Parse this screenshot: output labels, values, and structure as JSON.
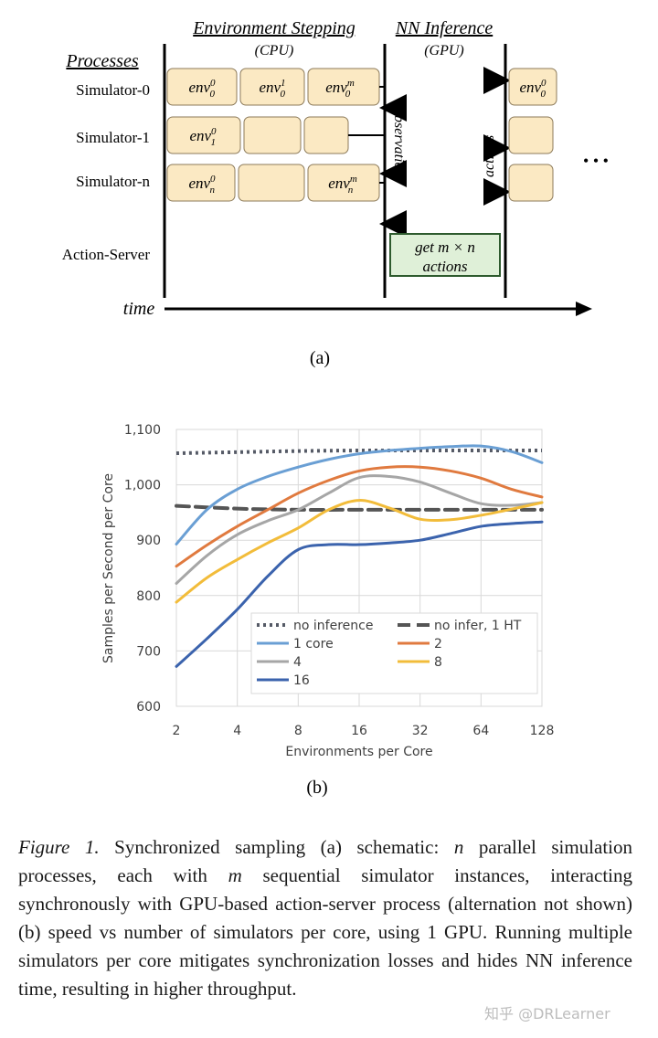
{
  "schematic": {
    "header_env": "Environment Stepping",
    "header_env_sub": "(CPU)",
    "header_nn": "NN Inference",
    "header_nn_sub": "(GPU)",
    "processes_label": "Processes",
    "rows": [
      "Simulator-0",
      "Simulator-1",
      "Simulator-n",
      "Action-Server"
    ],
    "observations_label": "observations",
    "actions_label": "actions",
    "action_box_line1": "get m × n",
    "action_box_line2": "actions",
    "time_label": "time",
    "ellipsis": "• • •",
    "panel_label": "(a)"
  },
  "chart_data": {
    "type": "line",
    "ylabel": "Samples per Second per Core",
    "xlabel": "Environments per Core",
    "categories": [
      "2",
      "4",
      "8",
      "16",
      "32",
      "64",
      "128"
    ],
    "x": [
      1,
      2,
      3,
      4,
      5,
      6,
      7
    ],
    "ylim": [
      600,
      1100
    ],
    "yticks": [
      "600",
      "700",
      "800",
      "900",
      "1,000",
      "1,100"
    ],
    "ytick_values": [
      600,
      700,
      800,
      900,
      1000,
      1100
    ],
    "grid": true,
    "legend_position": "bottom-center, inside",
    "series": [
      {
        "name": "no inference",
        "color": "#555a66",
        "dash": "dot",
        "x": [
          1,
          2,
          3,
          4,
          5,
          6,
          7
        ],
        "values": [
          1057,
          1059,
          1061,
          1062,
          1062,
          1062,
          1062
        ]
      },
      {
        "name": "no infer, 1 HT",
        "color": "#555555",
        "dash": "dash",
        "x": [
          1,
          2,
          3,
          4,
          5,
          6,
          7
        ],
        "values": [
          962,
          957,
          955,
          955,
          955,
          955,
          955
        ]
      },
      {
        "name": "1 core",
        "color": "#6a9fd4",
        "dash": "solid",
        "x": [
          1,
          1.5,
          2,
          2.5,
          3,
          3.5,
          4,
          4.5,
          5,
          5.5,
          6,
          6.5,
          7
        ],
        "values": [
          893,
          955,
          992,
          1015,
          1032,
          1046,
          1056,
          1062,
          1066,
          1069,
          1070,
          1060,
          1040
        ]
      },
      {
        "name": "2",
        "color": "#e07a3f",
        "dash": "solid",
        "x": [
          1,
          1.5,
          2,
          2.5,
          3,
          3.5,
          4,
          4.5,
          5,
          5.5,
          6,
          6.5,
          7
        ],
        "values": [
          853,
          891,
          925,
          955,
          985,
          1008,
          1025,
          1032,
          1032,
          1025,
          1012,
          992,
          978
        ]
      },
      {
        "name": "4",
        "color": "#a6a6a6",
        "dash": "solid",
        "x": [
          1,
          1.5,
          2,
          2.5,
          3,
          3.5,
          4,
          4.5,
          5,
          5.5,
          6,
          6.5,
          7
        ],
        "values": [
          822,
          872,
          910,
          935,
          955,
          985,
          1013,
          1015,
          1005,
          985,
          966,
          963,
          968
        ]
      },
      {
        "name": "8",
        "color": "#f2bc3a",
        "dash": "solid",
        "x": [
          1,
          1.5,
          2,
          2.5,
          3,
          3.5,
          4,
          4.5,
          5,
          5.5,
          6,
          6.5,
          7
        ],
        "values": [
          788,
          832,
          865,
          895,
          922,
          955,
          972,
          958,
          938,
          937,
          945,
          956,
          968
        ]
      },
      {
        "name": "16",
        "color": "#3b63ad",
        "dash": "solid",
        "x": [
          1,
          1.5,
          2,
          2.5,
          3,
          3.5,
          4,
          4.5,
          5,
          5.5,
          6,
          6.5,
          7
        ],
        "values": [
          672,
          722,
          775,
          835,
          883,
          892,
          892,
          895,
          900,
          912,
          925,
          930,
          933
        ]
      }
    ],
    "panel_label": "(b)"
  },
  "caption": {
    "fig_label": "Figure 1.",
    "text_1": " Synchronized sampling (a) schematic: ",
    "n": "n",
    "text_2": " parallel simulation processes, each with ",
    "m": "m",
    "text_3": " sequential simulator instances, interacting synchronously with GPU-based action-server process (alternation not shown) (b) speed vs number of simulators per core, using 1 GPU. Running multiple simulators per core mitigates synchronization losses and hides NN inference time, resulting in higher throughput."
  },
  "watermark": "知乎 @DRLearner"
}
